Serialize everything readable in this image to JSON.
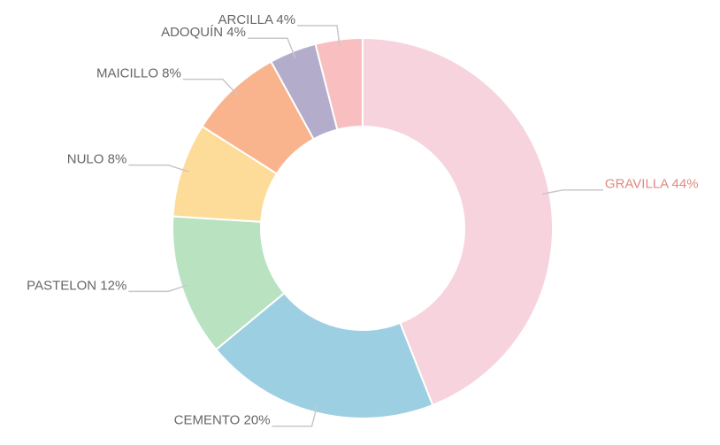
{
  "chart_data": {
    "type": "donut",
    "categories": [
      "GRAVILLA",
      "CEMENTO",
      "PASTELON",
      "NULO",
      "MAICILLO",
      "ADOQUÍN",
      "ARCILLA"
    ],
    "values": [
      44,
      20,
      12,
      8,
      8,
      4,
      4
    ],
    "value_labels": [
      "44%",
      "20%",
      "12%",
      "8%",
      "8%",
      "4%",
      "4%"
    ],
    "colors": [
      "#f7d3de",
      "#9dcfe2",
      "#b9e2c1",
      "#fcdc98",
      "#f9b48e",
      "#b3accb",
      "#f9bfc0"
    ],
    "highlight_label_color": "#e0897f"
  }
}
